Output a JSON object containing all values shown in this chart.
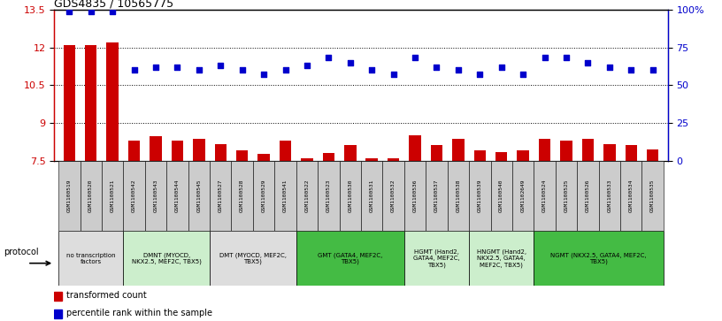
{
  "title": "GDS4835 / 10565775",
  "samples": [
    "GSM1100519",
    "GSM1100520",
    "GSM1100521",
    "GSM1100542",
    "GSM1100543",
    "GSM1100544",
    "GSM1100545",
    "GSM1100527",
    "GSM1100528",
    "GSM1100529",
    "GSM1100541",
    "GSM1100522",
    "GSM1100523",
    "GSM1100530",
    "GSM1100531",
    "GSM1100532",
    "GSM1100536",
    "GSM1100537",
    "GSM1100538",
    "GSM1100539",
    "GSM1100540",
    "GSM1102649",
    "GSM1100524",
    "GSM1100525",
    "GSM1100526",
    "GSM1100533",
    "GSM1100534",
    "GSM1100535"
  ],
  "bar_values": [
    12.1,
    12.1,
    12.2,
    8.3,
    8.45,
    8.3,
    8.35,
    8.15,
    7.9,
    7.75,
    8.3,
    7.6,
    7.8,
    8.1,
    7.6,
    7.6,
    8.5,
    8.1,
    8.35,
    7.9,
    7.85,
    7.9,
    8.35,
    8.3,
    8.35,
    8.15,
    8.1,
    7.95
  ],
  "dot_values": [
    99,
    99,
    99,
    60,
    62,
    62,
    60,
    63,
    60,
    57,
    60,
    63,
    68,
    65,
    60,
    57,
    68,
    62,
    60,
    57,
    62,
    57,
    68,
    68,
    65,
    62,
    60,
    60
  ],
  "protocols": [
    {
      "label": "no transcription\nfactors",
      "start": 0,
      "end": 3,
      "color": "#dddddd"
    },
    {
      "label": "DMNT (MYOCD,\nNKX2.5, MEF2C, TBX5)",
      "start": 3,
      "end": 7,
      "color": "#cceecc"
    },
    {
      "label": "DMT (MYOCD, MEF2C,\nTBX5)",
      "start": 7,
      "end": 11,
      "color": "#dddddd"
    },
    {
      "label": "GMT (GATA4, MEF2C,\nTBX5)",
      "start": 11,
      "end": 16,
      "color": "#44bb44"
    },
    {
      "label": "HGMT (Hand2,\nGATA4, MEF2C,\nTBX5)",
      "start": 16,
      "end": 19,
      "color": "#cceecc"
    },
    {
      "label": "HNGMT (Hand2,\nNKX2.5, GATA4,\nMEF2C, TBX5)",
      "start": 19,
      "end": 22,
      "color": "#cceecc"
    },
    {
      "label": "NGMT (NKX2.5, GATA4, MEF2C,\nTBX5)",
      "start": 22,
      "end": 28,
      "color": "#44bb44"
    }
  ],
  "ylim_left": [
    7.5,
    13.5
  ],
  "ylim_right": [
    0,
    100
  ],
  "yticks_left": [
    7.5,
    9,
    10.5,
    12,
    13.5
  ],
  "yticks_right": [
    0,
    25,
    50,
    75,
    100
  ],
  "bar_color": "#cc0000",
  "dot_color": "#0000cc",
  "sample_box_color": "#cccccc",
  "background_color": "#ffffff"
}
